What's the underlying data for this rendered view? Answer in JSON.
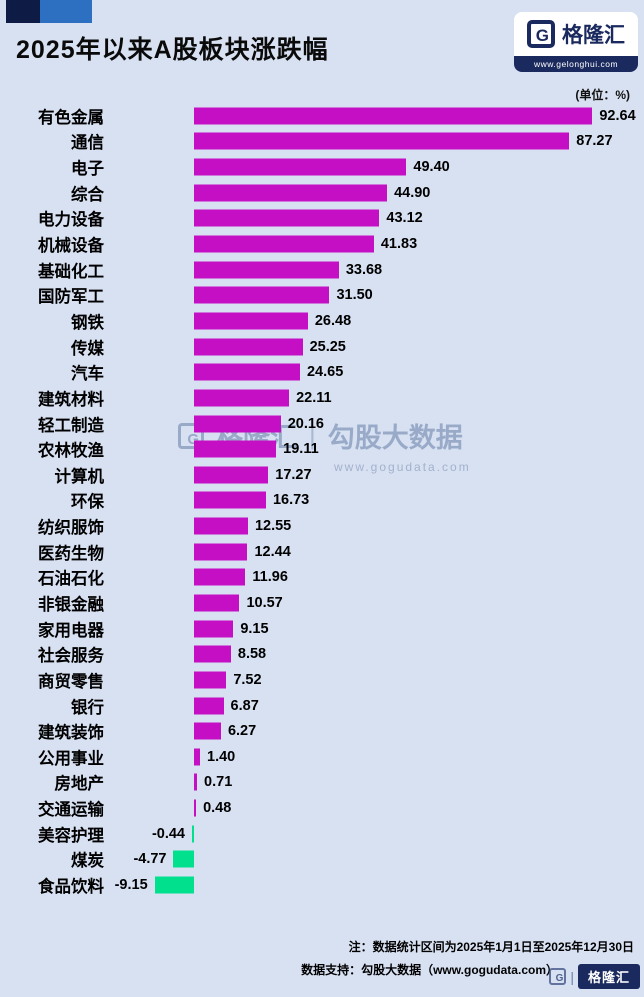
{
  "meta": {
    "title": "2025年以来A股板块涨跌幅",
    "unit_label": "(单位：%)",
    "logo": {
      "g": "G",
      "name": "格隆汇",
      "url": "www.gelonghui.com"
    },
    "watermark": {
      "g": "G",
      "brand": "格隆汇",
      "separator": "|",
      "partner": "勾股大数据",
      "url": "www.gogudata.com"
    },
    "corner": {
      "g": "G",
      "separator": "|",
      "brand": "格隆汇"
    },
    "footer": {
      "note": "注：数据统计区间为2025年1月1日至2025年12月30日",
      "support": "数据支持：勾股大数据（www.gogudata.com）"
    },
    "colors": {
      "positive": "#c40fc4",
      "negative": "#00e08d",
      "background": "#d8e1f2",
      "navy": "#1b2a5e"
    }
  },
  "chart_data": {
    "type": "bar",
    "orientation": "horizontal",
    "title": "2025年以来A股板块涨跌幅",
    "unit": "%",
    "xlim": [
      -10,
      95
    ],
    "legend": null,
    "grid": false,
    "categories": [
      "有色金属",
      "通信",
      "电子",
      "综合",
      "电力设备",
      "机械设备",
      "基础化工",
      "国防军工",
      "钢铁",
      "传媒",
      "汽车",
      "建筑材料",
      "轻工制造",
      "农林牧渔",
      "计算机",
      "环保",
      "纺织服饰",
      "医药生物",
      "石油石化",
      "非银金融",
      "家用电器",
      "社会服务",
      "商贸零售",
      "银行",
      "建筑装饰",
      "公用事业",
      "房地产",
      "交通运输",
      "美容护理",
      "煤炭",
      "食品饮料"
    ],
    "values": [
      92.64,
      87.27,
      49.4,
      44.9,
      43.12,
      41.83,
      33.68,
      31.5,
      26.48,
      25.25,
      24.65,
      22.11,
      20.16,
      19.11,
      17.27,
      16.73,
      12.55,
      12.44,
      11.96,
      10.57,
      9.15,
      8.58,
      7.52,
      6.87,
      6.27,
      1.4,
      0.71,
      0.48,
      -0.44,
      -4.77,
      -9.15
    ]
  }
}
